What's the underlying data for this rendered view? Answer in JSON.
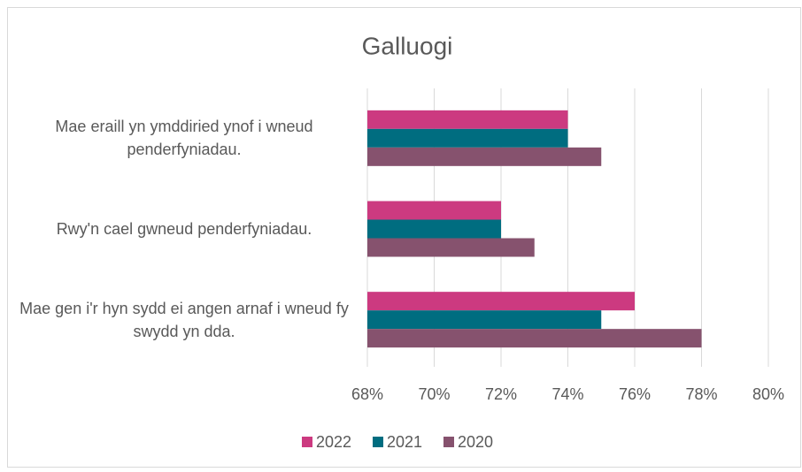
{
  "chart_data": {
    "type": "bar",
    "orientation": "horizontal",
    "title": "Galluogi",
    "categories": [
      "Mae eraill yn ymddiried ynof i wneud penderfyniadau.",
      "Rwy'n cael gwneud penderfyniadau.",
      "Mae gen i'r hyn sydd ei angen arnaf i wneud fy swydd yn dda."
    ],
    "series": [
      {
        "name": "2022",
        "color": "#cc3a80",
        "values": [
          74,
          72,
          76
        ]
      },
      {
        "name": "2021",
        "color": "#006d80",
        "values": [
          74,
          72,
          75
        ]
      },
      {
        "name": "2020",
        "color": "#86526e",
        "values": [
          75,
          73,
          78
        ]
      }
    ],
    "xlim": [
      68,
      80
    ],
    "xticks": [
      {
        "value": 68,
        "label": "68%"
      },
      {
        "value": 70,
        "label": "70%"
      },
      {
        "value": 72,
        "label": "72%"
      },
      {
        "value": 74,
        "label": "74%"
      },
      {
        "value": 76,
        "label": "76%"
      },
      {
        "value": 78,
        "label": "78%"
      },
      {
        "value": 80,
        "label": "80%"
      }
    ],
    "grid": true,
    "legend": "bottom"
  }
}
